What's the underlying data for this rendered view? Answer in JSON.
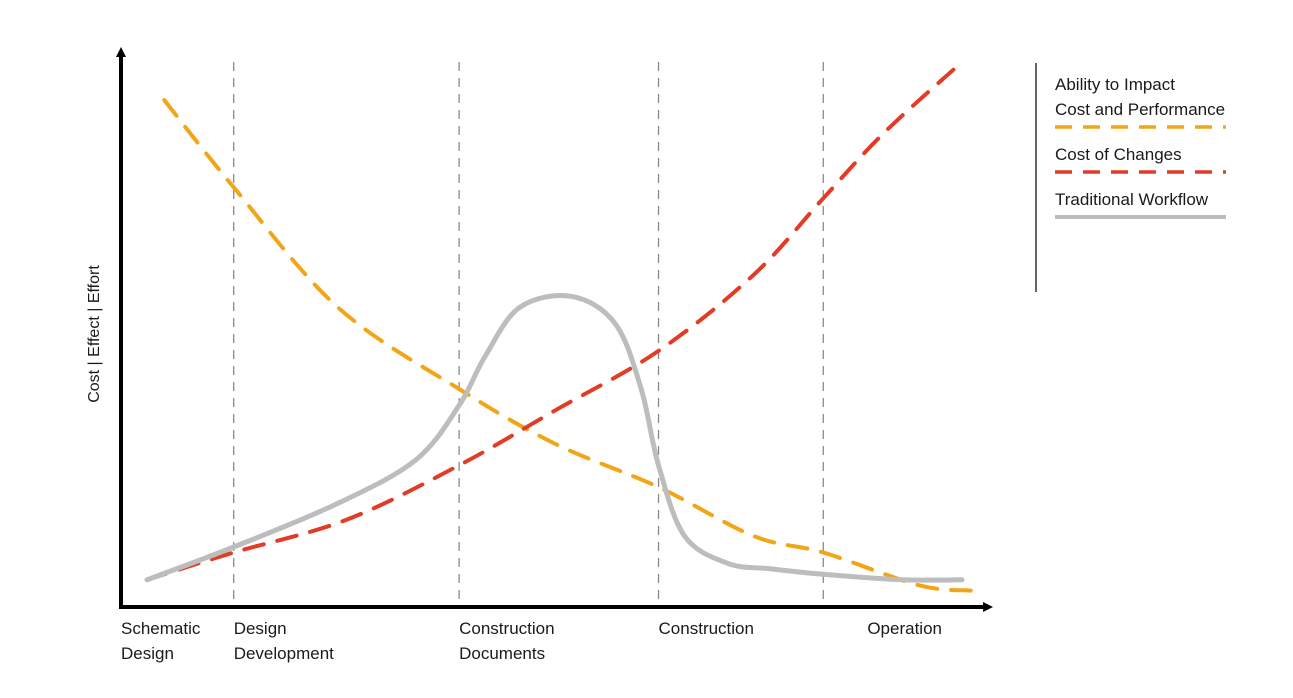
{
  "chart_data": {
    "type": "line",
    "ylabel": "Cost | Effect | Effort",
    "xlabel": "",
    "y_ticks_shown": false,
    "grid": "vertical dashed phase dividers",
    "legend_position": "top-right",
    "phases": [
      {
        "lines": [
          "Schematic",
          "Design"
        ]
      },
      {
        "lines": [
          "Design",
          "Development"
        ]
      },
      {
        "lines": [
          "Construction",
          "Documents"
        ]
      },
      {
        "lines": [
          "Construction"
        ]
      },
      {
        "lines": [
          "Operation"
        ]
      }
    ],
    "phase_starts": [
      0,
      0.13,
      0.39,
      0.62,
      0.81
    ],
    "series": [
      {
        "name_lines": [
          "Ability to Impact",
          "Cost and Performance"
        ],
        "color": "#F2A516",
        "style": "dashed",
        "points": [
          [
            0.05,
            0.93
          ],
          [
            0.13,
            0.77
          ],
          [
            0.25,
            0.55
          ],
          [
            0.39,
            0.4
          ],
          [
            0.5,
            0.3
          ],
          [
            0.62,
            0.22
          ],
          [
            0.73,
            0.13
          ],
          [
            0.81,
            0.1
          ],
          [
            0.92,
            0.04
          ],
          [
            0.98,
            0.03
          ]
        ]
      },
      {
        "name_lines": [
          "Cost of Changes"
        ],
        "color": "#E23B26",
        "style": "dashed",
        "points": [
          [
            0.03,
            0.05
          ],
          [
            0.13,
            0.1
          ],
          [
            0.26,
            0.16
          ],
          [
            0.39,
            0.26
          ],
          [
            0.5,
            0.36
          ],
          [
            0.62,
            0.47
          ],
          [
            0.73,
            0.61
          ],
          [
            0.81,
            0.75
          ],
          [
            0.88,
            0.87
          ],
          [
            0.97,
            1.0
          ]
        ]
      },
      {
        "name_lines": [
          "Traditional Workflow"
        ],
        "color": "#BDBDBD",
        "style": "solid",
        "points": [
          [
            0.03,
            0.05
          ],
          [
            0.13,
            0.11
          ],
          [
            0.25,
            0.19
          ],
          [
            0.34,
            0.27
          ],
          [
            0.39,
            0.37
          ],
          [
            0.42,
            0.46
          ],
          [
            0.46,
            0.55
          ],
          [
            0.52,
            0.57
          ],
          [
            0.57,
            0.52
          ],
          [
            0.6,
            0.4
          ],
          [
            0.62,
            0.26
          ],
          [
            0.65,
            0.13
          ],
          [
            0.7,
            0.08
          ],
          [
            0.75,
            0.07
          ],
          [
            0.81,
            0.06
          ],
          [
            0.9,
            0.05
          ],
          [
            0.97,
            0.05
          ]
        ]
      }
    ]
  }
}
